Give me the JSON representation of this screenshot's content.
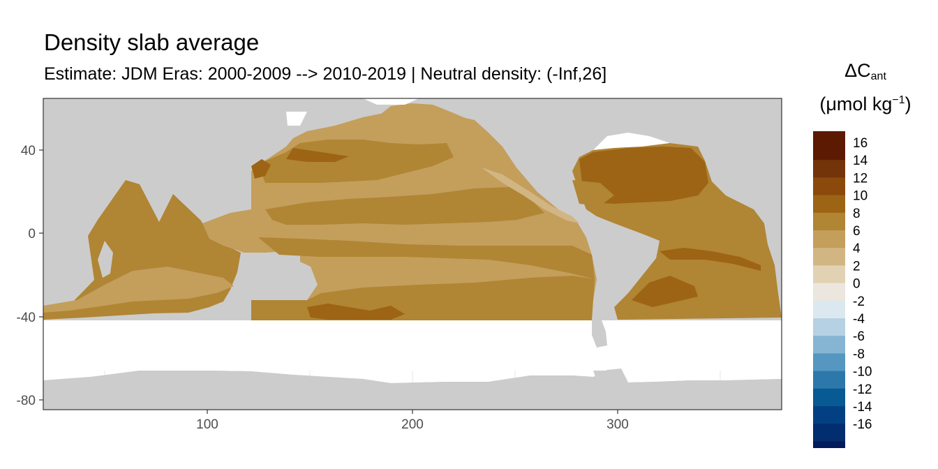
{
  "title": "Density slab average",
  "subtitle": "Estimate: JDM Eras: 2000-2009 --> 2010-2019 | Neutral density: (-Inf,26]",
  "legend": {
    "title_symbol": "ΔC",
    "title_subscript": "ant",
    "unit_open": "(μmol kg",
    "unit_sup": "−1",
    "unit_close": ")",
    "bins": [
      {
        "label": "16",
        "color": "#5c1a03"
      },
      {
        "label": "14",
        "color": "#74340a"
      },
      {
        "label": "12",
        "color": "#8b4a0c"
      },
      {
        "label": "10",
        "color": "#9c6414"
      },
      {
        "label": "8",
        "color": "#b08534"
      },
      {
        "label": "6",
        "color": "#c49e5b"
      },
      {
        "label": "4",
        "color": "#d1b684"
      },
      {
        "label": "2",
        "color": "#e2d2b4"
      },
      {
        "label": "0",
        "color": "#ece7de"
      },
      {
        "label": "-2",
        "color": "#dce8ef"
      },
      {
        "label": "-4",
        "color": "#b6d1e3"
      },
      {
        "label": "-6",
        "color": "#86b5d3"
      },
      {
        "label": "-8",
        "color": "#5597c0"
      },
      {
        "label": "-10",
        "color": "#2c78aa"
      },
      {
        "label": "-12",
        "color": "#075a93"
      },
      {
        "label": "-14",
        "color": "#034083"
      },
      {
        "label": "-16",
        "color": "#022d6e"
      }
    ],
    "bottom_color": "#011b5b"
  },
  "map": {
    "x_ticks": [
      "100",
      "200",
      "300"
    ],
    "y_ticks": [
      "40",
      "0",
      "-40",
      "-80"
    ],
    "x_range": [
      20,
      380
    ],
    "y_range": [
      -85,
      65
    ],
    "land_color": "#cccccc",
    "no_data_color": "#ffffff"
  }
}
